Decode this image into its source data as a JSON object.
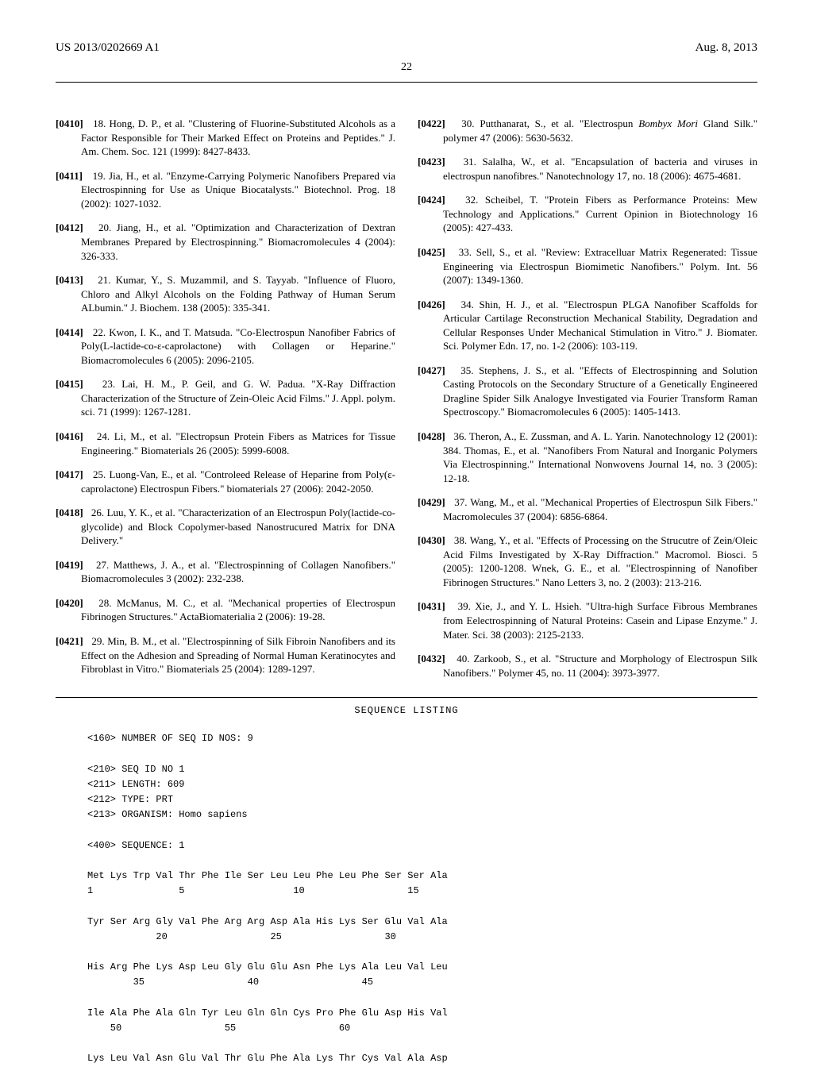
{
  "header": {
    "patent_number": "US 2013/0202669 A1",
    "date": "Aug. 8, 2013",
    "page_number": "22"
  },
  "left_column": [
    {
      "num": "[0410]",
      "text": "18. Hong, D. P., et al. \"Clustering of Fluorine-Substituted Alcohols as a Factor Responsible for Their Marked Effect on Proteins and Peptides.\" J. Am. Chem. Soc. 121 (1999): 8427-8433."
    },
    {
      "num": "[0411]",
      "text": "19. Jia, H., et al. \"Enzyme-Carrying Polymeric Nanofibers Prepared via Electrospinning for Use as Unique Biocatalysts.\" Biotechnol. Prog. 18 (2002): 1027-1032."
    },
    {
      "num": "[0412]",
      "text": "20. Jiang, H., et al. \"Optimization and Characterization of Dextran Membranes Prepared by Electrospinning.\" Biomacromolecules 4 (2004): 326-333."
    },
    {
      "num": "[0413]",
      "text": "21. Kumar, Y., S. Muzammil, and S. Tayyab. \"Influence of Fluoro, Chloro and Alkyl Alcohols on the Folding Pathway of Human Serum ALbumin.\" J. Biochem. 138 (2005): 335-341."
    },
    {
      "num": "[0414]",
      "text": "22. Kwon, I. K., and T. Matsuda. \"Co-Electrospun Nanofiber Fabrics of Poly(L-lactide-co-ε-caprolactone) with Collagen or Heparine.\" Biomacromolecules 6 (2005): 2096-2105."
    },
    {
      "num": "[0415]",
      "text": "23. Lai, H. M., P. Geil, and G. W. Padua. \"X-Ray Diffraction Characterization of the Structure of Zein-Oleic Acid Films.\" J. Appl. polym. sci. 71 (1999): 1267-1281."
    },
    {
      "num": "[0416]",
      "text": "24. Li, M., et al. \"Electropsun Protein Fibers as Matrices for Tissue Engineering.\" Biomaterials 26 (2005): 5999-6008."
    },
    {
      "num": "[0417]",
      "text": "25. Luong-Van, E., et al. \"Controleed Release of Heparine from Poly(ε-caprolactone) Electrospun Fibers.\" biomaterials 27 (2006): 2042-2050."
    },
    {
      "num": "[0418]",
      "text": "26. Luu, Y. K., et al. \"Characterization of an Electrospun Poly(lactide-co-glycolide) and Block Copolymer-based Nanostrucured Matrix for DNA Delivery.\""
    },
    {
      "num": "[0419]",
      "text": "27. Matthews, J. A., et al. \"Electrospinning of Collagen Nanofibers.\" Biomacromolecules 3 (2002): 232-238."
    },
    {
      "num": "[0420]",
      "text": "28. McManus, M. C., et al. \"Mechanical properties of Electrospun Fibrinogen Structures.\" ActaBiomaterialia 2 (2006): 19-28."
    },
    {
      "num": "[0421]",
      "text": "29. Min, B. M., et al. \"Electrospinning of Silk Fibroin Nanofibers and its Effect on the Adhesion and Spreading of Normal Human Keratinocytes and Fibroblast in Vitro.\" Biomaterials 25 (2004): 1289-1297."
    }
  ],
  "right_column": [
    {
      "num": "[0422]",
      "text": "30. Putthanarat, S., et al. \"Electrospun ",
      "italic": "Bombyx Mori",
      "text2": " Gland Silk.\" polymer 47 (2006): 5630-5632."
    },
    {
      "num": "[0423]",
      "text": "31. Salalha, W., et al. \"Encapsulation of bacteria and viruses in electrospun nanofibres.\" Nanotechnology 17, no. 18 (2006): 4675-4681."
    },
    {
      "num": "[0424]",
      "text": "32. Scheibel, T. \"Protein Fibers as Performance Proteins: Mew Technology and Applications.\" Current Opinion in Biotechnology 16 (2005): 427-433."
    },
    {
      "num": "[0425]",
      "text": "33. Sell, S., et al. \"Review: Extracelluar Matrix Regenerated: Tissue Engineering via Electrospun Biomimetic Nanofibers.\" Polym. Int. 56 (2007): 1349-1360."
    },
    {
      "num": "[0426]",
      "text": "34. Shin, H. J., et al. \"Electrospun PLGA Nanofiber Scaffolds for Articular Cartilage Reconstruction Mechanical Stability, Degradation and Cellular Responses Under Mechanical Stimulation in Vitro.\" J. Biomater. Sci. Polymer Edn. 17, no. 1-2 (2006): 103-119."
    },
    {
      "num": "[0427]",
      "text": "35. Stephens, J. S., et al. \"Effects of Electrospinning and Solution Casting Protocols on the Secondary Structure of a Genetically Engineered Dragline Spider Silk Analogye Investigated via Fourier Transform Raman Spectroscopy.\" Biomacromolecules 6 (2005): 1405-1413."
    },
    {
      "num": "[0428]",
      "text": "36. Theron, A., E. Zussman, and A. L. Yarin. Nanotechnology 12 (2001): 384. Thomas, E., et al. \"Nanofibers From Natural and Inorganic Polymers Via Electrospinning.\" International Nonwovens Journal 14, no. 3 (2005): 12-18."
    },
    {
      "num": "[0429]",
      "text": "37. Wang, M., et al. \"Mechanical Properties of Electrospun Silk Fibers.\" Macromolecules 37 (2004): 6856-6864."
    },
    {
      "num": "[0430]",
      "text": "38. Wang, Y., et al. \"Effects of Processing on the Strucutre of Zein/Oleic Acid Films Investigated by X-Ray Diffraction.\" Macromol. Biosci. 5 (2005): 1200-1208. Wnek, G. E., et al. \"Electrospinning of Nanofiber Fibrinogen Structures.\" Nano Letters 3, no. 2 (2003): 213-216."
    },
    {
      "num": "[0431]",
      "text": "39. Xie, J., and Y. L. Hsieh. \"Ultra-high Surface Fibrous Membranes from Eelectrospinning of Natural Proteins: Casein and Lipase Enzyme.\" J. Mater. Sci. 38 (2003): 2125-2133."
    },
    {
      "num": "[0432]",
      "text": "40. Zarkoob, S., et al. \"Structure and Morphology of Electrospun Silk Nanofibers.\" Polymer 45, no. 11 (2004): 3973-3977."
    }
  ],
  "sequence": {
    "title": "SEQUENCE LISTING",
    "body": "<160> NUMBER OF SEQ ID NOS: 9\n\n<210> SEQ ID NO 1\n<211> LENGTH: 609\n<212> TYPE: PRT\n<213> ORGANISM: Homo sapiens\n\n<400> SEQUENCE: 1\n\nMet Lys Trp Val Thr Phe Ile Ser Leu Leu Phe Leu Phe Ser Ser Ala\n1               5                   10                  15\n\nTyr Ser Arg Gly Val Phe Arg Arg Asp Ala His Lys Ser Glu Val Ala\n            20                  25                  30\n\nHis Arg Phe Lys Asp Leu Gly Glu Glu Asn Phe Lys Ala Leu Val Leu\n        35                  40                  45\n\nIle Ala Phe Ala Gln Tyr Leu Gln Gln Cys Pro Phe Glu Asp His Val\n    50                  55                  60\n\nLys Leu Val Asn Glu Val Thr Glu Phe Ala Lys Thr Cys Val Ala Asp"
  }
}
